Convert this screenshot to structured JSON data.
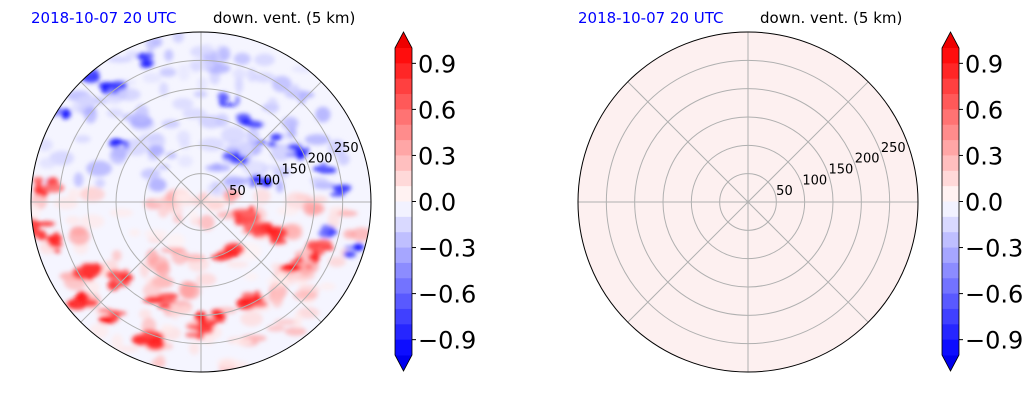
{
  "chart_data": [
    {
      "type": "heatmap",
      "projection": "polar",
      "time_label": "2018-10-07 20 UTC",
      "title": "down. vent. (5 km)",
      "radial_ticks": [
        "50",
        "100",
        "150",
        "200",
        "250"
      ],
      "radial_range": [
        0,
        300
      ],
      "field": "mixed",
      "colorbar": {
        "ticks": [
          "0.9",
          "0.6",
          "0.3",
          "0.0",
          "−0.3",
          "−0.6",
          "−0.9"
        ],
        "range": [
          -1.0,
          1.0
        ],
        "colormap": "bwr",
        "extend": "both"
      }
    },
    {
      "type": "heatmap",
      "projection": "polar",
      "time_label": "2018-10-07 20 UTC",
      "title": "down. vent. (5 km)",
      "radial_ticks": [
        "50",
        "100",
        "150",
        "200",
        "250"
      ],
      "radial_range": [
        0,
        300
      ],
      "field": "uniform near zero",
      "colorbar": {
        "ticks": [
          "0.9",
          "0.6",
          "0.3",
          "0.0",
          "−0.3",
          "−0.6",
          "−0.9"
        ],
        "range": [
          -1.0,
          1.0
        ],
        "colormap": "bwr",
        "extend": "both"
      }
    }
  ],
  "colors": {
    "time_label": "#0000ff",
    "positive": "#ff0000",
    "negative": "#0000ff",
    "neutral": "#f5f5ff",
    "uniform_fill": "#fdf0f0",
    "grid": "#b0b0b0"
  }
}
